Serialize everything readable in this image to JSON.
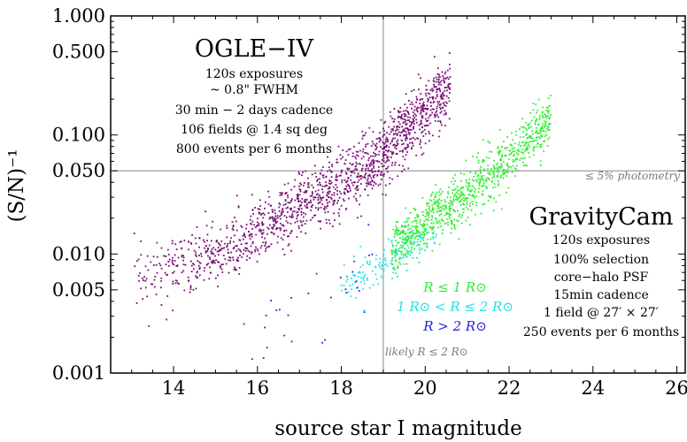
{
  "chart_data": {
    "type": "scatter",
    "xlabel": "source star I magnitude",
    "ylabel": "(S/N)⁻¹",
    "xlim": [
      12.5,
      26.2
    ],
    "ylim": [
      0.001,
      1.0
    ],
    "y_scale": "log",
    "x_ticks": [
      "14",
      "16",
      "18",
      "20",
      "22",
      "24",
      "26"
    ],
    "y_ticks": [
      {
        "value": 1.0,
        "label": "1.000"
      },
      {
        "value": 0.5,
        "label": "0.500"
      },
      {
        "value": 0.1,
        "label": "0.100"
      },
      {
        "value": 0.05,
        "label": "0.050"
      },
      {
        "value": 0.01,
        "label": "0.010"
      },
      {
        "value": 0.005,
        "label": "0.005"
      },
      {
        "value": 0.001,
        "label": "0.001"
      }
    ],
    "reference_lines": [
      {
        "axis": "y",
        "value": 0.05,
        "label": "≤ 5% photometry"
      },
      {
        "axis": "x",
        "value": 19.0,
        "label": "likely R ≤ 2 R⊙"
      }
    ],
    "ogle_block": {
      "title": "OGLE−IV",
      "lines": [
        "120s exposures",
        "~ 0.8\" FWHM",
        "30 min − 2 days cadence",
        "106 fields @ 1.4 sq deg",
        "800 events per 6 months"
      ]
    },
    "gravitycam_block": {
      "title": "GravityCam",
      "lines": [
        "120s exposures",
        "100% selection",
        "core−halo PSF",
        "15min cadence",
        "1 field @ 27′ × 27′",
        "250 events per 6 months"
      ]
    },
    "legend": [
      {
        "label": "R ≤ 1 R⊙",
        "color": "#33ee33"
      },
      {
        "label": "1 R⊙ < R ≤ 2 R⊙",
        "color": "#22e0e8"
      },
      {
        "label": "R > 2 R⊙",
        "color": "#2222dd"
      }
    ],
    "series": [
      {
        "group": "OGLE-IV",
        "color": "#7a1078",
        "trend": [
          [
            13.0,
            0.0065
          ],
          [
            15.0,
            0.0095
          ],
          [
            17.0,
            0.024
          ],
          [
            18.5,
            0.05
          ],
          [
            19.0,
            0.07
          ],
          [
            20.0,
            0.16
          ],
          [
            20.6,
            0.26
          ]
        ],
        "count": 1500
      },
      {
        "group": "GravityCam",
        "name": "R ≤ 1 R⊙",
        "color": "#33ee33",
        "trend": [
          [
            19.2,
            0.011
          ],
          [
            20.0,
            0.018
          ],
          [
            21.0,
            0.032
          ],
          [
            22.0,
            0.062
          ],
          [
            23.0,
            0.13
          ]
        ],
        "count": 900
      },
      {
        "group": "GravityCam",
        "name": "1 R⊙ < R ≤ 2 R⊙",
        "color": "#22e0e8",
        "trend": [
          [
            18.0,
            0.0055
          ],
          [
            18.8,
            0.0075
          ],
          [
            19.6,
            0.012
          ],
          [
            20.3,
            0.016
          ]
        ],
        "count": 150
      },
      {
        "group": "GravityCam",
        "name": "R > 2 R⊙",
        "color": "#2222dd",
        "trend": [
          [
            15.5,
            0.0015
          ],
          [
            17.0,
            0.0035
          ],
          [
            18.0,
            0.005
          ],
          [
            18.8,
            0.008
          ]
        ],
        "count": 30
      }
    ]
  }
}
